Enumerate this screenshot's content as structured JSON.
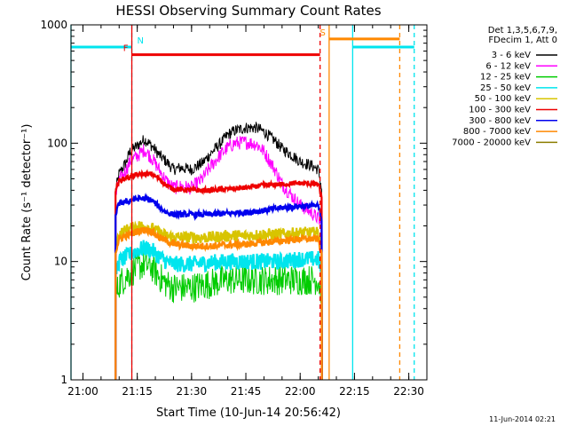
{
  "chart_data": {
    "type": "line",
    "title": "HESSI Observing Summary Count Rates",
    "xlabel": "Start Time (10-Jun-14 20:56:42)",
    "ylabel": "Count Rate (s⁻¹ detector⁻¹)",
    "xlim": [
      "20:56:42",
      "22:35:00"
    ],
    "ylim": [
      1,
      1000
    ],
    "yscale": "log",
    "x_ticks": [
      "21:00",
      "21:15",
      "21:30",
      "21:45",
      "22:00",
      "22:15",
      "22:30"
    ],
    "y_ticks": [
      "1",
      "10",
      "100",
      "1000"
    ],
    "legend_position": "top-right",
    "legend_header": [
      "Det 1,3,5,6,7,9,",
      "FDecim 1, Att 0"
    ],
    "timestamp": "11-Jun-2014 02:21",
    "series": [
      {
        "name": "3 - 6 keV",
        "color": "#000000",
        "points": [
          [
            "21:09",
            40
          ],
          [
            "21:10",
            55
          ],
          [
            "21:12",
            70
          ],
          [
            "21:13",
            85
          ],
          [
            "21:15",
            95
          ],
          [
            "21:17",
            108
          ],
          [
            "21:19",
            95
          ],
          [
            "21:21",
            80
          ],
          [
            "21:23",
            70
          ],
          [
            "21:25",
            60
          ],
          [
            "21:27",
            62
          ],
          [
            "21:30",
            60
          ],
          [
            "21:33",
            68
          ],
          [
            "21:35",
            80
          ],
          [
            "21:38",
            100
          ],
          [
            "21:40",
            118
          ],
          [
            "21:42",
            128
          ],
          [
            "21:45",
            135
          ],
          [
            "21:48",
            135
          ],
          [
            "21:50",
            125
          ],
          [
            "21:53",
            105
          ],
          [
            "21:55",
            90
          ],
          [
            "21:58",
            78
          ],
          [
            "22:00",
            70
          ],
          [
            "22:03",
            65
          ],
          [
            "22:05",
            60
          ],
          [
            "22:06",
            40
          ]
        ]
      },
      {
        "name": "6 - 12 keV",
        "color": "#ff00ff",
        "points": [
          [
            "21:09",
            35
          ],
          [
            "21:10",
            48
          ],
          [
            "21:12",
            60
          ],
          [
            "21:13",
            70
          ],
          [
            "21:15",
            78
          ],
          [
            "21:17",
            88
          ],
          [
            "21:19",
            75
          ],
          [
            "21:21",
            60
          ],
          [
            "21:23",
            48
          ],
          [
            "21:25",
            42
          ],
          [
            "21:27",
            43
          ],
          [
            "21:30",
            42
          ],
          [
            "21:33",
            50
          ],
          [
            "21:35",
            62
          ],
          [
            "21:38",
            80
          ],
          [
            "21:40",
            92
          ],
          [
            "21:42",
            100
          ],
          [
            "21:45",
            102
          ],
          [
            "21:48",
            98
          ],
          [
            "21:50",
            85
          ],
          [
            "21:53",
            60
          ],
          [
            "21:55",
            45
          ],
          [
            "21:58",
            35
          ],
          [
            "22:00",
            30
          ],
          [
            "22:03",
            26
          ],
          [
            "22:05",
            23
          ],
          [
            "22:06",
            20
          ]
        ]
      },
      {
        "name": "12 - 25 keV",
        "color": "#00cc00",
        "points": [
          [
            "21:09",
            5
          ],
          [
            "21:10",
            6.5
          ],
          [
            "21:12",
            7.5
          ],
          [
            "21:15",
            9
          ],
          [
            "21:17",
            9.5
          ],
          [
            "21:19",
            9
          ],
          [
            "21:21",
            7.5
          ],
          [
            "21:23",
            6.5
          ],
          [
            "21:25",
            6
          ],
          [
            "21:30",
            6
          ],
          [
            "21:35",
            6.5
          ],
          [
            "21:40",
            7
          ],
          [
            "21:45",
            7
          ],
          [
            "21:50",
            7
          ],
          [
            "21:55",
            7
          ],
          [
            "22:00",
            7
          ],
          [
            "22:05",
            7
          ],
          [
            "22:06",
            5
          ]
        ]
      },
      {
        "name": "25 - 50 keV",
        "color": "#00e5ee",
        "points": [
          [
            "21:09",
            8
          ],
          [
            "21:10",
            10
          ],
          [
            "21:12",
            11
          ],
          [
            "21:15",
            12.5
          ],
          [
            "21:17",
            13
          ],
          [
            "21:19",
            12.5
          ],
          [
            "21:21",
            11
          ],
          [
            "21:23",
            10
          ],
          [
            "21:25",
            9.5
          ],
          [
            "21:30",
            9.5
          ],
          [
            "21:35",
            9.8
          ],
          [
            "21:40",
            10
          ],
          [
            "21:45",
            10
          ],
          [
            "21:50",
            10
          ],
          [
            "21:55",
            10
          ],
          [
            "22:00",
            10.5
          ],
          [
            "22:05",
            10.5
          ],
          [
            "22:06",
            8
          ]
        ]
      },
      {
        "name": "50 - 100 keV",
        "color": "#d8c400",
        "points": [
          [
            "21:09",
            13
          ],
          [
            "21:10",
            17
          ],
          [
            "21:12",
            18.5
          ],
          [
            "21:15",
            20
          ],
          [
            "21:17",
            20
          ],
          [
            "21:19",
            19
          ],
          [
            "21:21",
            17.5
          ],
          [
            "21:23",
            16.5
          ],
          [
            "21:25",
            16
          ],
          [
            "21:30",
            16
          ],
          [
            "21:35",
            16
          ],
          [
            "21:40",
            16.5
          ],
          [
            "21:45",
            16.5
          ],
          [
            "21:50",
            17
          ],
          [
            "21:55",
            17
          ],
          [
            "22:00",
            17.5
          ],
          [
            "22:05",
            17.5
          ],
          [
            "22:06",
            13
          ]
        ]
      },
      {
        "name": "100 - 300 keV",
        "color": "#ee0000",
        "points": [
          [
            "21:09",
            40
          ],
          [
            "21:10",
            48
          ],
          [
            "21:12",
            51
          ],
          [
            "21:15",
            54
          ],
          [
            "21:17",
            55
          ],
          [
            "21:19",
            55
          ],
          [
            "21:21",
            50
          ],
          [
            "21:23",
            44
          ],
          [
            "21:25",
            41
          ],
          [
            "21:30",
            40
          ],
          [
            "21:35",
            40
          ],
          [
            "21:40",
            41
          ],
          [
            "21:45",
            42
          ],
          [
            "21:50",
            44
          ],
          [
            "21:55",
            45
          ],
          [
            "22:00",
            46
          ],
          [
            "22:05",
            45
          ],
          [
            "22:06",
            34
          ]
        ]
      },
      {
        "name": "300 - 800 keV",
        "color": "#0000ee",
        "points": [
          [
            "21:09",
            25
          ],
          [
            "21:10",
            31
          ],
          [
            "21:12",
            32
          ],
          [
            "21:15",
            34
          ],
          [
            "21:17",
            34
          ],
          [
            "21:19",
            33
          ],
          [
            "21:21",
            29
          ],
          [
            "21:23",
            26
          ],
          [
            "21:25",
            25
          ],
          [
            "21:30",
            25
          ],
          [
            "21:35",
            25
          ],
          [
            "21:40",
            25.5
          ],
          [
            "21:45",
            26
          ],
          [
            "21:50",
            27
          ],
          [
            "21:55",
            28.5
          ],
          [
            "22:00",
            29.5
          ],
          [
            "22:05",
            29.5
          ],
          [
            "22:06",
            22
          ]
        ]
      },
      {
        "name": "800 - 7000 keV",
        "color": "#ff8800",
        "points": [
          [
            "21:09",
            12
          ],
          [
            "21:10",
            15.5
          ],
          [
            "21:12",
            16.5
          ],
          [
            "21:15",
            18
          ],
          [
            "21:17",
            18.5
          ],
          [
            "21:19",
            18
          ],
          [
            "21:21",
            16
          ],
          [
            "21:23",
            15
          ],
          [
            "21:25",
            14
          ],
          [
            "21:30",
            13.5
          ],
          [
            "21:35",
            13.5
          ],
          [
            "21:40",
            13.8
          ],
          [
            "21:45",
            14
          ],
          [
            "21:50",
            14.5
          ],
          [
            "21:55",
            15
          ],
          [
            "22:00",
            15.5
          ],
          [
            "22:05",
            15.5
          ],
          [
            "22:06",
            11
          ]
        ]
      },
      {
        "name": "7000 - 20000 keV",
        "color": "#8b7d00",
        "points": []
      }
    ],
    "flags": [
      {
        "label": "N",
        "color": "#00e5ee",
        "start": "20:56:42",
        "end": "21:13:30",
        "level": 650
      },
      {
        "label": "N",
        "color": "#00e5ee",
        "start": "22:14:30",
        "end": "22:31:30",
        "level": 650
      },
      {
        "label": "F",
        "color": "#ee0000",
        "start": "21:13:30",
        "end": "22:05:30",
        "level": 560
      },
      {
        "label": "S",
        "color": "#ff8800",
        "start": "22:08:00",
        "end": "22:27:30",
        "level": 760
      }
    ]
  }
}
